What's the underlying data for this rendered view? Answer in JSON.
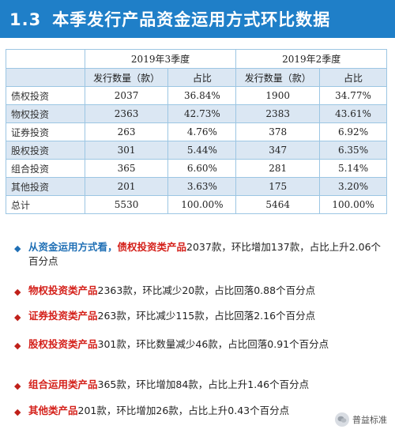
{
  "header": {
    "num": "1.3",
    "title": "本季发行产品资金运用方式环比数据"
  },
  "table": {
    "period_q3": "2019年3季度",
    "period_q2": "2019年2季度",
    "col_count": "发行数量（款）",
    "col_share": "占比",
    "rows": [
      {
        "name": "债权投资",
        "q3_count": "2037",
        "q3_share": "36.84%",
        "q2_count": "1900",
        "q2_share": "34.77%"
      },
      {
        "name": "物权投资",
        "q3_count": "2363",
        "q3_share": "42.73%",
        "q2_count": "2383",
        "q2_share": "43.61%"
      },
      {
        "name": "证券投资",
        "q3_count": "263",
        "q3_share": "4.76%",
        "q2_count": "378",
        "q2_share": "6.92%"
      },
      {
        "name": "股权投资",
        "q3_count": "301",
        "q3_share": "5.44%",
        "q2_count": "347",
        "q2_share": "6.35%"
      },
      {
        "name": "组合投资",
        "q3_count": "365",
        "q3_share": "6.60%",
        "q2_count": "281",
        "q2_share": "5.14%"
      },
      {
        "name": "其他投资",
        "q3_count": "201",
        "q3_share": "3.63%",
        "q2_count": "175",
        "q2_share": "3.20%"
      },
      {
        "name": "总计",
        "q3_count": "5530",
        "q3_share": "100.00%",
        "q2_count": "5464",
        "q2_share": "100.00%"
      }
    ]
  },
  "bullets": [
    {
      "lead": "从资金运用方式看，",
      "key": "债权投资类产品",
      "rest": "2037款，环比增加137款，占比上升2.06个百分点"
    },
    {
      "key": "物权投资类产品",
      "rest": "2363款，环比减少20款，占比回落0.88个百分点"
    },
    {
      "key": "证券投资类产品",
      "rest": "263款，环比减少115款，占比回落2.16个百分点"
    },
    {
      "key": "股权投资类产品",
      "rest": "301款，环比数量减少46款，占比回落0.91个百分点"
    },
    {
      "key": "组合运用类产品",
      "rest": "365款，环比增加84款，占比上升1.46个百分点"
    },
    {
      "key": "其他类产品",
      "rest": "201款，环比增加26款，占比上升0.43个百分点"
    }
  ],
  "watermark": {
    "text": "普益标准",
    "icon": "wechat-icon"
  },
  "colors": {
    "header_bg": "#1f7fc8",
    "row_alt": "#dbe7f3",
    "highlight_red": "#d4201a",
    "highlight_blue": "#1f6fb5"
  }
}
